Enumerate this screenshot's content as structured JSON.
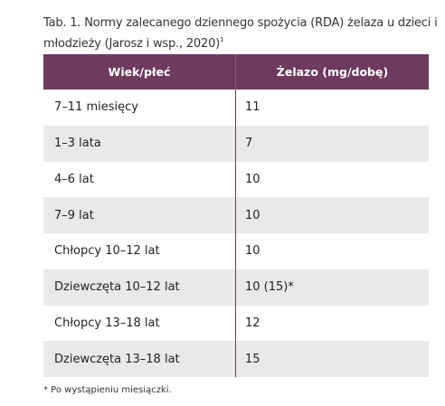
{
  "caption": {
    "text": "Tab. 1. Normy zalecanego dziennego spożycia (RDA) żelaza u dzieci i młodzieży (Jarosz i wsp., 2020)",
    "ref": "1"
  },
  "table": {
    "headers": [
      "Wiek/płeć",
      "Żelazo (mg/dobę)"
    ],
    "rows": [
      {
        "age": "7–11 miesięcy",
        "iron": "11"
      },
      {
        "age": "1–3 lata",
        "iron": "7"
      },
      {
        "age": "4–6 lat",
        "iron": "10"
      },
      {
        "age": "7–9 lat",
        "iron": "10"
      },
      {
        "age": "Chłopcy 10–12 lat",
        "iron": "10"
      },
      {
        "age": "Dziewczęta 10–12 lat",
        "iron": "10 (15)*"
      },
      {
        "age": "Chłopcy 13–18 lat",
        "iron": "12"
      },
      {
        "age": "Dziewczęta 13–18 lat",
        "iron": "15"
      }
    ]
  },
  "footnote": "* Po wystąpieniu miesiączki.",
  "colors": {
    "header_bg": "#6e3a5d",
    "stripe_bg": "#ebe8ea"
  }
}
